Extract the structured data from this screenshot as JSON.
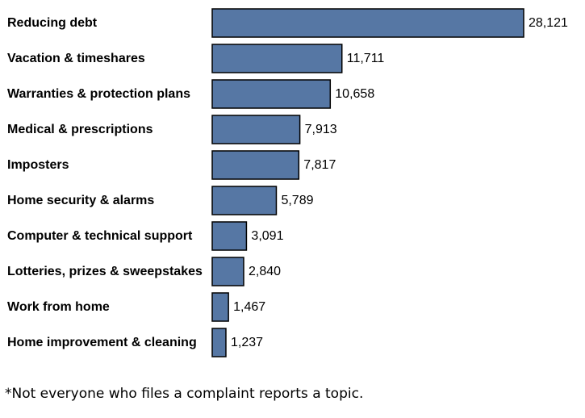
{
  "chart_data": {
    "type": "bar",
    "orientation": "horizontal",
    "categories": [
      "Reducing debt",
      "Vacation & timeshares",
      "Warranties & protection plans",
      "Medical & prescriptions",
      "Imposters",
      "Home security & alarms",
      "Computer & technical support",
      "Lotteries, prizes & sweepstakes",
      "Work from home",
      "Home improvement & cleaning"
    ],
    "values": [
      28121,
      11711,
      10658,
      7913,
      7817,
      5789,
      3091,
      2840,
      1467,
      1237
    ],
    "value_labels": [
      "28,121",
      "11,711",
      "10,658",
      "7,913",
      "7,817",
      "5,789",
      "3,091",
      "2,840",
      "1,467",
      "1,237"
    ],
    "xlim": [
      0,
      28121
    ],
    "grid": false,
    "legend": "none",
    "bar_color": "#5677a4",
    "bar_edge_color": "#000000"
  },
  "footnote": "*Not everyone who files a complaint reports a topic."
}
